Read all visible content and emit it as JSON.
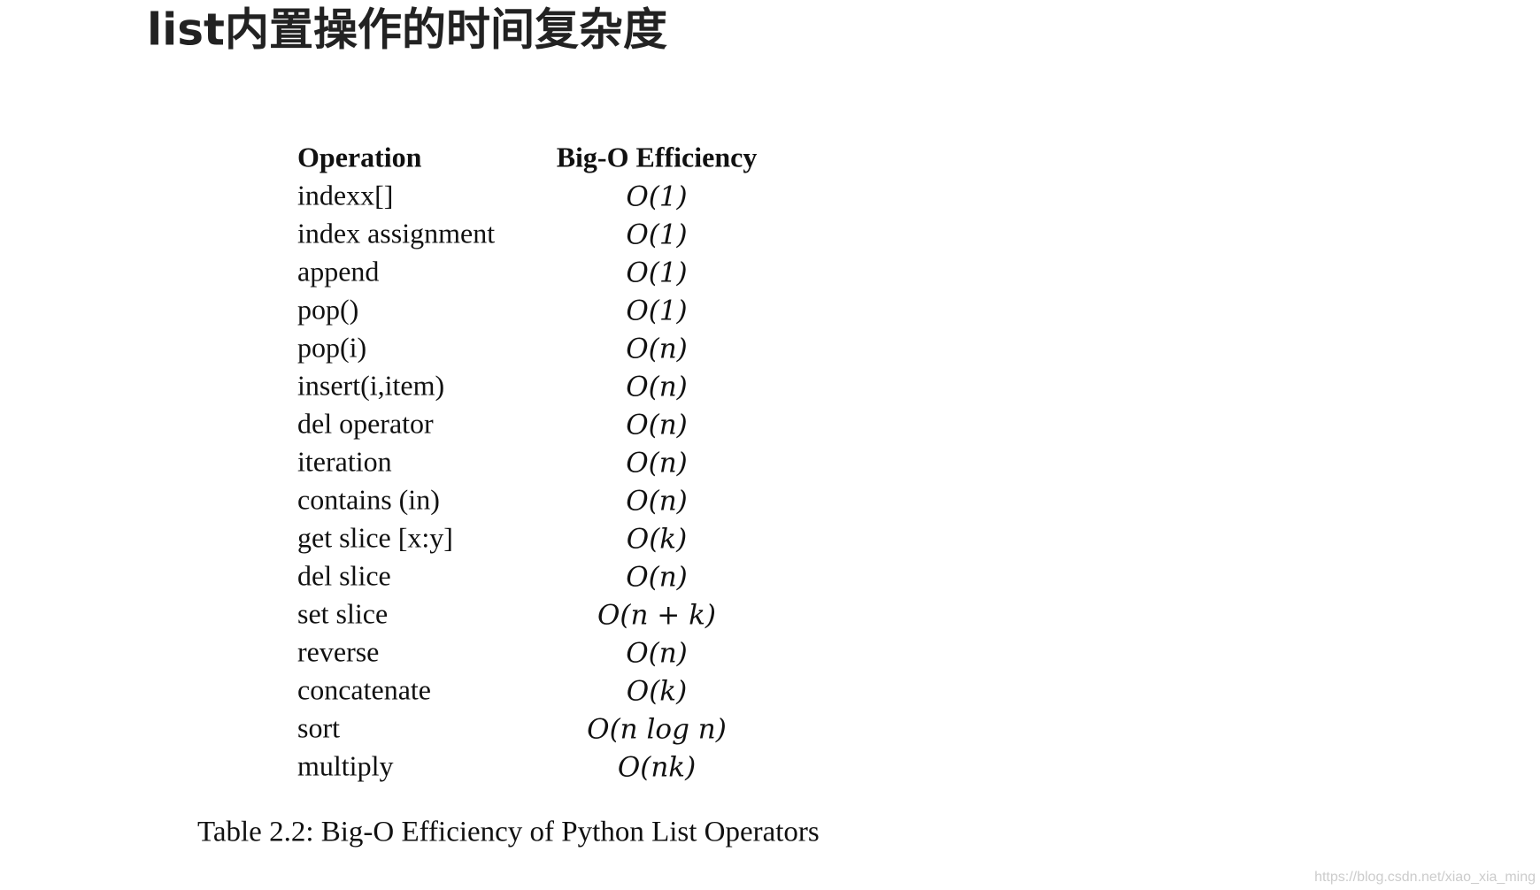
{
  "header": {
    "title": "list内置操作的时间复杂度"
  },
  "table": {
    "headers": [
      "Operation",
      "Big-O Efficiency"
    ],
    "rows": [
      [
        "indexx[]",
        "O(1)"
      ],
      [
        "index assignment",
        "O(1)"
      ],
      [
        "append",
        "O(1)"
      ],
      [
        "pop()",
        "O(1)"
      ],
      [
        "pop(i)",
        "O(n)"
      ],
      [
        "insert(i,item)",
        "O(n)"
      ],
      [
        "del operator",
        "O(n)"
      ],
      [
        "iteration",
        "O(n)"
      ],
      [
        "contains (in)",
        "O(n)"
      ],
      [
        "get slice [x:y]",
        "O(k)"
      ],
      [
        "del slice",
        "O(n)"
      ],
      [
        "set slice",
        "O(n + k)"
      ],
      [
        "reverse",
        "O(n)"
      ],
      [
        "concatenate",
        "O(k)"
      ],
      [
        "sort",
        "O(n log n)"
      ],
      [
        "multiply",
        "O(nk)"
      ]
    ],
    "caption": "Table 2.2: Big-O Efficiency of Python List Operators"
  },
  "watermark": "https://blog.csdn.net/xiao_xia_ming"
}
